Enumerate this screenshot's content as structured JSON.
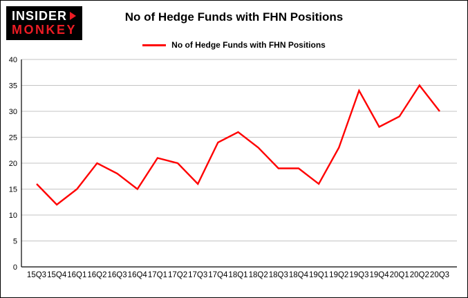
{
  "logo": {
    "line1": "INSIDER",
    "line2": "MONKEY"
  },
  "title": "No of Hedge Funds with FHN Positions",
  "legend": {
    "label": "No of Hedge Funds with FHN Positions"
  },
  "colors": {
    "line": "#ff0000",
    "logo_red": "#ed1c24",
    "grid": "#c3c3c3",
    "axis": "#000000",
    "text": "#000000"
  },
  "chart_data": {
    "type": "line",
    "title": "No of Hedge Funds with FHN Positions",
    "xlabel": "",
    "ylabel": "",
    "categories": [
      "15Q3",
      "15Q4",
      "16Q1",
      "16Q2",
      "16Q3",
      "16Q4",
      "17Q1",
      "17Q2",
      "17Q3",
      "17Q4",
      "18Q1",
      "18Q2",
      "18Q3",
      "18Q4",
      "19Q1",
      "19Q2",
      "19Q3",
      "19Q4",
      "20Q1",
      "20Q2",
      "20Q3"
    ],
    "values": [
      16,
      12,
      15,
      20,
      18,
      15,
      21,
      20,
      16,
      24,
      26,
      23,
      19,
      19,
      16,
      23,
      34,
      27,
      29,
      35,
      30
    ],
    "ylim": [
      0,
      40
    ],
    "yticks": [
      0,
      5,
      10,
      15,
      20,
      25,
      30,
      35,
      40
    ],
    "grid": true,
    "line_color": "#ff0000",
    "legend_entries": [
      "No of Hedge Funds with FHN Positions"
    ],
    "legend_position": "top-center"
  }
}
